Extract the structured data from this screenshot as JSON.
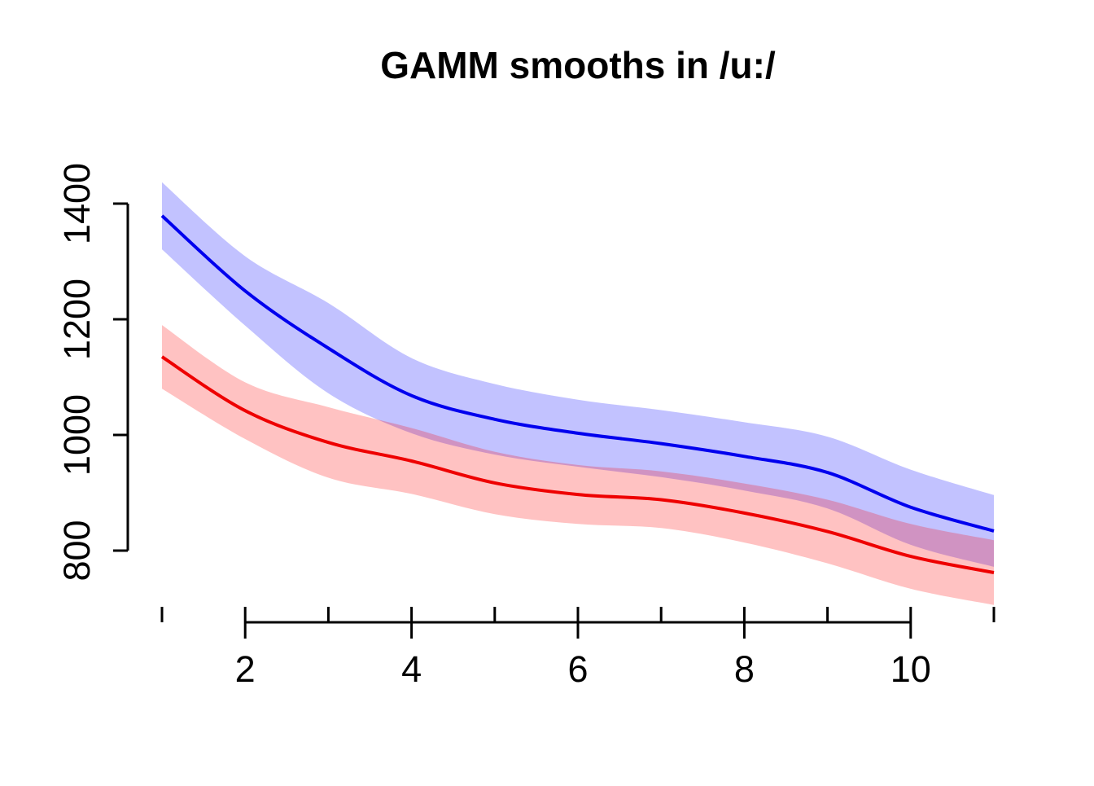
{
  "title": "GAMM smooths in /u:/",
  "chart_data": {
    "type": "line",
    "title": "GAMM smooths in /u:/",
    "xlabel": "",
    "ylabel": "",
    "xlim": [
      1,
      11
    ],
    "ylim": [
      800,
      1400
    ],
    "grid": false,
    "legend": "none",
    "x": [
      1,
      2,
      3,
      4,
      5,
      6,
      7,
      8,
      9,
      10,
      11
    ],
    "x_ticks_labeled": [
      2,
      4,
      6,
      8,
      10
    ],
    "x_ticks_minor": [
      1,
      2,
      3,
      4,
      5,
      6,
      7,
      8,
      9,
      10,
      11
    ],
    "y_ticks": [
      800,
      1000,
      1200,
      1400
    ],
    "series": [
      {
        "name": "blue-smooth",
        "line_color": "#0000ee",
        "band_color": "rgba(0,0,255,0.24)",
        "fit": [
          1379,
          1249,
          1150,
          1068,
          1027,
          1003,
          985,
          963,
          935,
          875,
          834
        ],
        "upper": [
          1437,
          1309,
          1228,
          1133,
          1088,
          1061,
          1043,
          1022,
          997,
          940,
          896
        ],
        "lower": [
          1321,
          1189,
          1072,
          1003,
          966,
          945,
          927,
          904,
          873,
          810,
          772
        ]
      },
      {
        "name": "red-smooth",
        "line_color": "#ee0000",
        "band_color": "rgba(255,0,0,0.24)",
        "fit": [
          1135,
          1042,
          987,
          955,
          917,
          897,
          888,
          865,
          833,
          790,
          762
        ],
        "upper": [
          1190,
          1091,
          1048,
          1012,
          971,
          948,
          937,
          916,
          888,
          846,
          818
        ],
        "lower": [
          1080,
          993,
          926,
          898,
          863,
          846,
          839,
          814,
          778,
          734,
          706
        ]
      }
    ],
    "axis_color": "#000000",
    "background_color": "#ffffff"
  }
}
